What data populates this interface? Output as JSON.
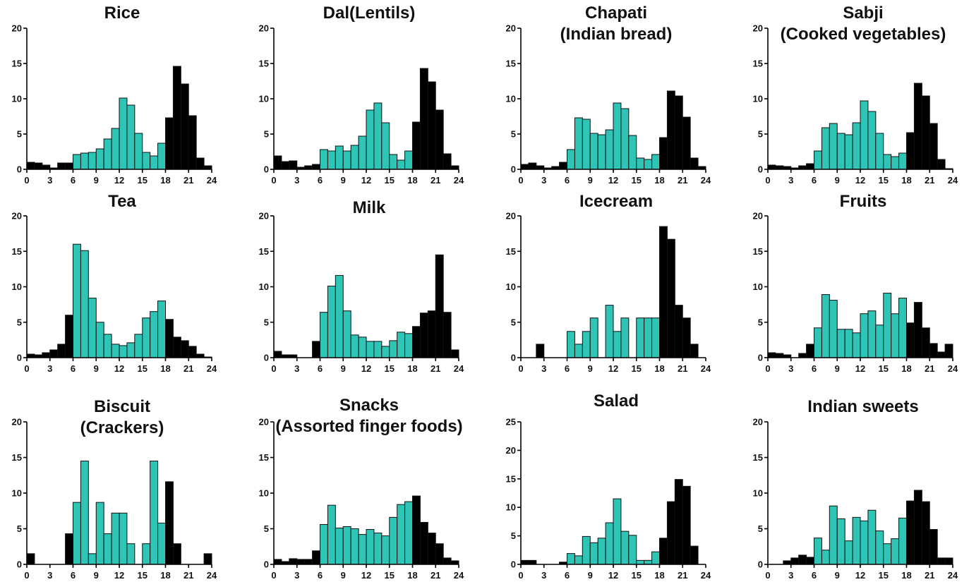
{
  "colors": {
    "day": "#2ec4b6",
    "night": "#000000",
    "axis": "#000000"
  },
  "chart_data": [
    {
      "type": "bar",
      "title": [
        "Rice"
      ],
      "xticks": [
        0,
        3,
        6,
        9,
        12,
        15,
        18,
        21,
        24
      ],
      "ylim": [
        0,
        20
      ],
      "yticks": [
        0,
        5,
        10,
        15,
        20
      ],
      "values": [
        1.0,
        0.9,
        0.6,
        0.2,
        0.9,
        0.9,
        2.1,
        2.3,
        2.4,
        2.9,
        4.3,
        5.8,
        10.1,
        9.1,
        5.1,
        2.4,
        1.9,
        3.7,
        7.3,
        14.6,
        12.1,
        7.6,
        1.6,
        0.5
      ],
      "night_bins": [
        0,
        1,
        2,
        3,
        4,
        5,
        18,
        19,
        20,
        21,
        22,
        23
      ]
    },
    {
      "type": "bar",
      "title": [
        "Dal(Lentils)"
      ],
      "xticks": [
        0,
        3,
        6,
        9,
        12,
        15,
        18,
        21,
        24
      ],
      "ylim": [
        0,
        20
      ],
      "yticks": [
        0,
        5,
        10,
        15,
        20
      ],
      "values": [
        1.9,
        1.1,
        1.2,
        0.3,
        0.5,
        0.7,
        2.8,
        2.6,
        3.3,
        2.6,
        3.4,
        4.7,
        8.4,
        9.4,
        6.6,
        2.1,
        1.3,
        2.6,
        6.7,
        14.3,
        12.4,
        8.4,
        2.2,
        0.5
      ],
      "night_bins": [
        0,
        1,
        2,
        3,
        4,
        5,
        18,
        19,
        20,
        21,
        22,
        23
      ]
    },
    {
      "type": "bar",
      "title": [
        "Chapati",
        "(Indian bread)"
      ],
      "xticks": [
        0,
        3,
        6,
        9,
        12,
        15,
        18,
        21,
        24
      ],
      "ylim": [
        0,
        20
      ],
      "yticks": [
        0,
        5,
        10,
        15,
        20
      ],
      "values": [
        0.7,
        0.9,
        0.5,
        0.2,
        0.4,
        1.0,
        2.8,
        7.3,
        7.1,
        5.1,
        4.9,
        5.6,
        9.4,
        8.6,
        4.8,
        1.6,
        1.4,
        2.1,
        4.5,
        11.1,
        10.4,
        7.4,
        1.6,
        0.4
      ],
      "night_bins": [
        0,
        1,
        2,
        3,
        4,
        5,
        18,
        19,
        20,
        21,
        22,
        23
      ]
    },
    {
      "type": "bar",
      "title": [
        "Sabji",
        "(Cooked vegetables)"
      ],
      "xticks": [
        0,
        3,
        6,
        9,
        12,
        15,
        18,
        21,
        24
      ],
      "ylim": [
        0,
        20
      ],
      "yticks": [
        0,
        5,
        10,
        15,
        20
      ],
      "values": [
        0.6,
        0.5,
        0.4,
        0.2,
        0.5,
        0.8,
        2.6,
        5.9,
        6.5,
        5.1,
        4.9,
        6.6,
        9.7,
        8.2,
        5.1,
        2.1,
        1.8,
        2.3,
        5.2,
        12.2,
        10.4,
        6.5,
        1.4,
        0.1
      ],
      "night_bins": [
        0,
        1,
        2,
        3,
        4,
        5,
        18,
        19,
        20,
        21,
        22,
        23
      ]
    },
    {
      "type": "bar",
      "title": [
        "Tea"
      ],
      "xticks": [
        0,
        3,
        6,
        9,
        12,
        15,
        18,
        21,
        24
      ],
      "ylim": [
        0,
        20
      ],
      "yticks": [
        0,
        5,
        10,
        15,
        20
      ],
      "values": [
        0.5,
        0.4,
        0.7,
        1.1,
        1.9,
        6.0,
        16.0,
        15.1,
        8.4,
        5.0,
        3.3,
        1.9,
        1.7,
        2.1,
        3.3,
        5.6,
        6.5,
        8.0,
        5.4,
        2.9,
        2.4,
        1.6,
        0.5,
        0.1
      ],
      "night_bins": [
        0,
        1,
        2,
        3,
        4,
        5,
        18,
        19,
        20,
        21,
        22,
        23
      ]
    },
    {
      "type": "bar",
      "title": [
        "Milk"
      ],
      "xticks": [
        0,
        3,
        6,
        9,
        12,
        15,
        18,
        21,
        24
      ],
      "ylim": [
        0,
        20
      ],
      "yticks": [
        0,
        5,
        10,
        15,
        20
      ],
      "values": [
        0.9,
        0.4,
        0.4,
        0.0,
        0.0,
        2.3,
        6.4,
        10.1,
        11.6,
        6.6,
        3.2,
        2.9,
        2.3,
        2.3,
        1.6,
        2.4,
        3.6,
        3.4,
        4.4,
        6.3,
        6.6,
        14.5,
        6.4,
        1.1
      ],
      "night_bins": [
        0,
        1,
        2,
        3,
        4,
        5,
        18,
        19,
        20,
        21,
        22,
        23
      ]
    },
    {
      "type": "bar",
      "title": [
        "Icecream"
      ],
      "xticks": [
        0,
        3,
        6,
        9,
        12,
        15,
        18,
        21,
        24
      ],
      "ylim": [
        0,
        20
      ],
      "yticks": [
        0,
        5,
        10,
        15,
        20
      ],
      "values": [
        0,
        0,
        1.9,
        0,
        0,
        0,
        3.7,
        1.9,
        3.7,
        5.6,
        0,
        7.4,
        3.7,
        5.6,
        0,
        5.6,
        5.6,
        5.6,
        18.5,
        16.7,
        7.4,
        5.6,
        1.9,
        0
      ],
      "night_bins": [
        0,
        1,
        2,
        3,
        4,
        5,
        18,
        19,
        20,
        21,
        22,
        23
      ]
    },
    {
      "type": "bar",
      "title": [
        "Fruits"
      ],
      "xticks": [
        0,
        3,
        6,
        9,
        12,
        15,
        18,
        21,
        24
      ],
      "ylim": [
        0,
        20
      ],
      "yticks": [
        0,
        5,
        10,
        15,
        20
      ],
      "values": [
        0.7,
        0.6,
        0.4,
        0.0,
        0.6,
        1.9,
        4.2,
        8.9,
        8.1,
        4.0,
        4.0,
        3.5,
        6.2,
        6.6,
        4.6,
        9.1,
        6.2,
        8.4,
        4.9,
        7.8,
        4.2,
        2.0,
        0.8,
        1.9
      ],
      "night_bins": [
        0,
        1,
        2,
        3,
        4,
        5,
        18,
        19,
        20,
        21,
        22,
        23
      ]
    },
    {
      "type": "bar",
      "title": [
        "Biscuit",
        "(Crackers)"
      ],
      "xticks": [
        0,
        3,
        6,
        9,
        12,
        15,
        18,
        21,
        24
      ],
      "ylim": [
        0,
        20
      ],
      "yticks": [
        0,
        5,
        10,
        15,
        20
      ],
      "values": [
        1.5,
        0,
        0,
        0,
        0,
        4.3,
        8.7,
        14.5,
        1.5,
        8.7,
        4.3,
        7.2,
        7.2,
        2.9,
        0,
        2.9,
        14.5,
        5.8,
        11.6,
        2.9,
        0,
        0,
        0,
        1.5
      ],
      "night_bins": [
        0,
        1,
        2,
        3,
        4,
        5,
        18,
        19,
        20,
        21,
        22,
        23
      ]
    },
    {
      "type": "bar",
      "title": [
        "Snacks",
        "(Assorted finger foods)"
      ],
      "xticks": [
        0,
        3,
        6,
        9,
        12,
        15,
        18,
        21,
        24
      ],
      "ylim": [
        0,
        20
      ],
      "yticks": [
        0,
        5,
        10,
        15,
        20
      ],
      "values": [
        0.7,
        0.4,
        0.8,
        0.7,
        0.7,
        1.9,
        5.6,
        8.3,
        5.1,
        5.3,
        5.0,
        4.2,
        4.9,
        4.4,
        4.0,
        6.6,
        8.4,
        8.8,
        9.6,
        5.9,
        4.4,
        2.9,
        0.9,
        0.5
      ],
      "night_bins": [
        0,
        1,
        2,
        3,
        4,
        5,
        18,
        19,
        20,
        21,
        22,
        23
      ]
    },
    {
      "type": "bar",
      "title": [
        "Salad"
      ],
      "xticks": [
        0,
        3,
        6,
        9,
        12,
        15,
        18,
        21,
        24
      ],
      "ylim": [
        0,
        25
      ],
      "yticks": [
        0,
        5,
        10,
        15,
        20,
        25
      ],
      "values": [
        0.7,
        0.7,
        0,
        0,
        0,
        0.4,
        1.9,
        1.5,
        4.9,
        3.8,
        4.6,
        7.3,
        11.5,
        5.8,
        5.1,
        0.7,
        0.7,
        2.2,
        4.6,
        11.0,
        14.9,
        13.7,
        3.2,
        0
      ],
      "night_bins": [
        0,
        1,
        2,
        3,
        4,
        5,
        18,
        19,
        20,
        21,
        22,
        23
      ]
    },
    {
      "type": "bar",
      "title": [
        "Indian sweets"
      ],
      "xticks": [
        0,
        3,
        6,
        9,
        12,
        15,
        18,
        21,
        24
      ],
      "ylim": [
        0,
        20
      ],
      "yticks": [
        0,
        5,
        10,
        15,
        20
      ],
      "values": [
        0,
        0,
        0.5,
        0.9,
        1.3,
        1.0,
        3.7,
        2.0,
        8.2,
        6.4,
        3.3,
        6.6,
        6.1,
        7.6,
        4.7,
        2.9,
        3.6,
        6.5,
        8.9,
        10.4,
        8.8,
        4.9,
        0.9,
        0.9
      ],
      "night_bins": [
        0,
        1,
        2,
        3,
        4,
        5,
        18,
        19,
        20,
        21,
        22,
        23
      ]
    }
  ]
}
